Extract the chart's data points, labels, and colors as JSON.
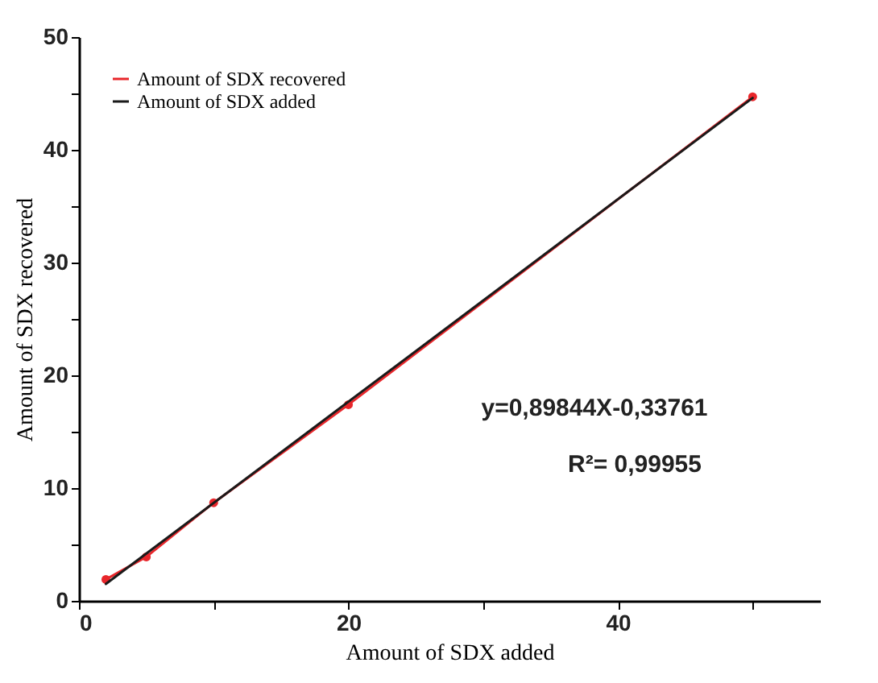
{
  "chart_data": {
    "type": "line",
    "xlabel": "Amount of SDX added",
    "ylabel": "Amount of SDX recovered",
    "x": [
      2,
      5,
      10,
      20,
      50
    ],
    "series": [
      {
        "name": "Amount of SDX recovered",
        "color": "#e8262b",
        "values": [
          1.9,
          3.9,
          8.7,
          17.4,
          44.7
        ],
        "marker": "circle"
      },
      {
        "name": "Amount of SDX added",
        "color": "#1a1a1a",
        "x": [
          2,
          50
        ],
        "values": [
          1.5,
          44.6
        ],
        "marker": "none"
      }
    ],
    "xlim": [
      0,
      55
    ],
    "ylim": [
      0,
      50
    ],
    "xticks": [
      0,
      {
        "value": 10,
        "label": null
      },
      20,
      {
        "value": 30,
        "label": null
      },
      40,
      {
        "value": 50,
        "label": null
      }
    ],
    "yticks": [
      0,
      {
        "value": 5,
        "label": null
      },
      10,
      {
        "value": 15,
        "label": null
      },
      20,
      {
        "value": 25,
        "label": null
      },
      30,
      {
        "value": 35,
        "label": null
      },
      40,
      {
        "value": 45,
        "label": null
      },
      50
    ],
    "grid": false,
    "legend": "top left",
    "line_style": "solid",
    "annotations": [
      "y=0,89844X-0,33761",
      "R²= 0,99955"
    ]
  }
}
